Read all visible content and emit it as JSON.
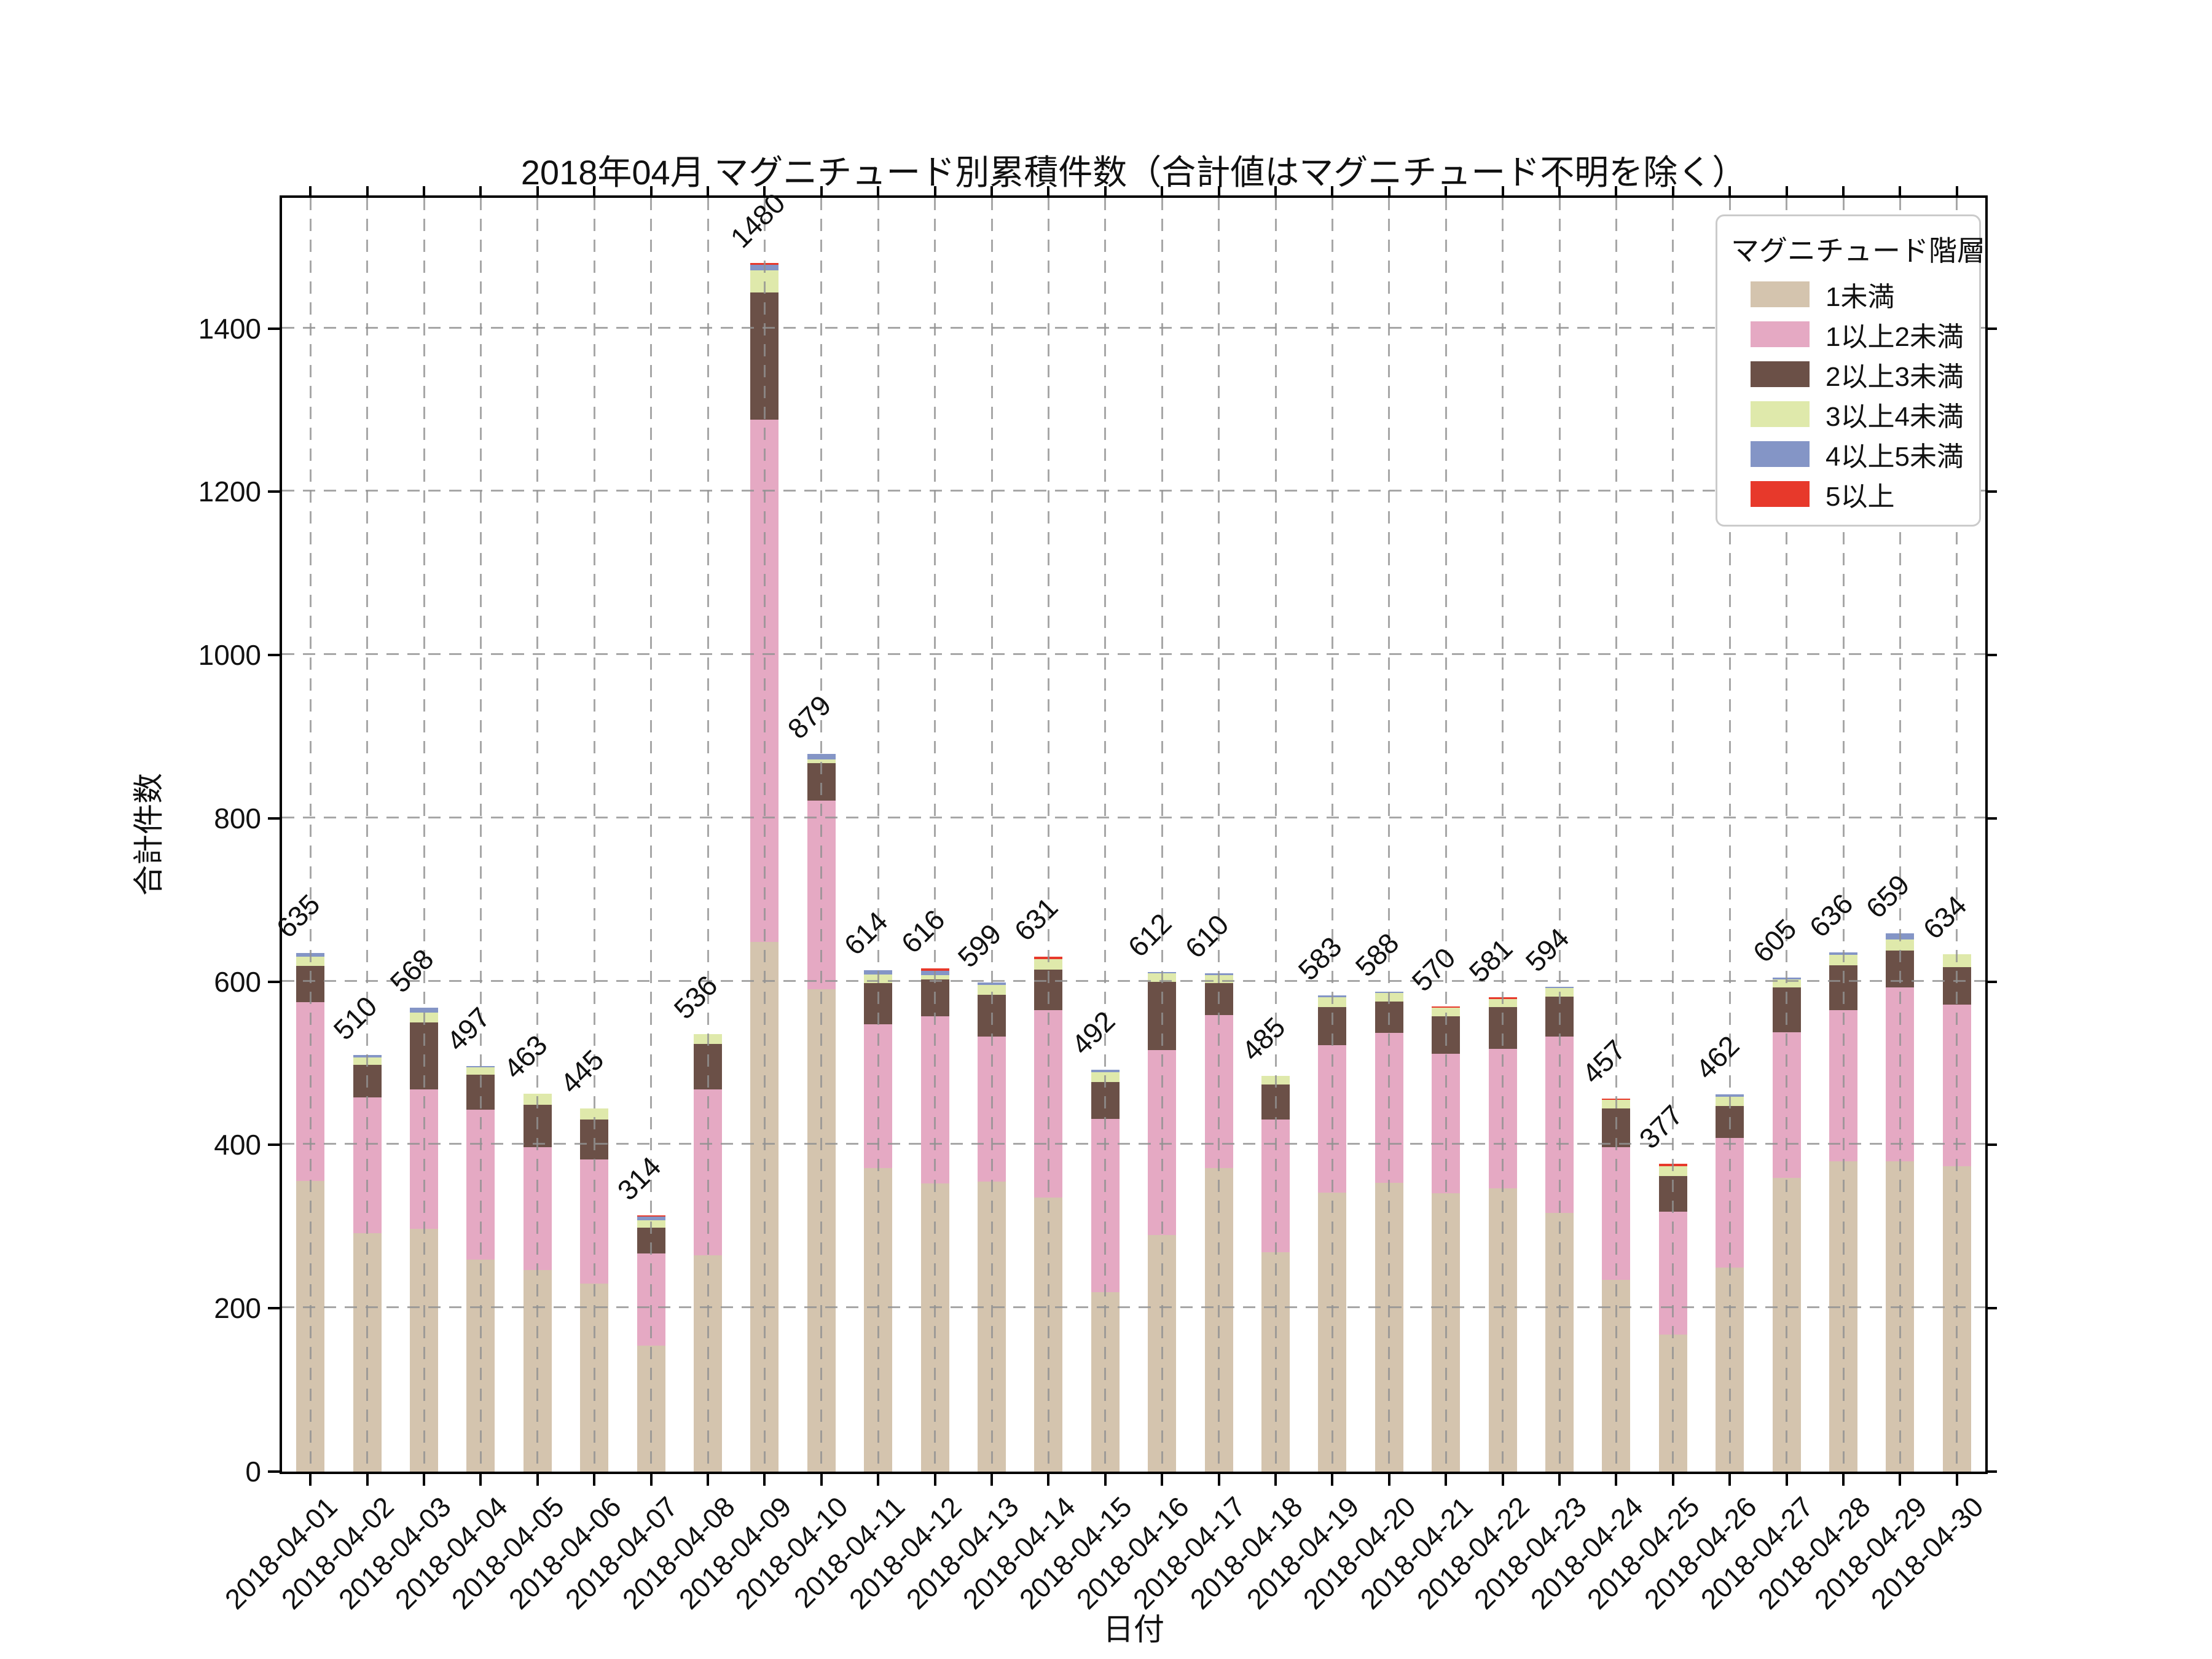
{
  "figure": {
    "title": "2018年04月 マグニチュード別累積件数（合計値はマグニチュード不明を除く）",
    "xlabel": "日付",
    "ylabel": "合計件数"
  },
  "legend": {
    "title": "マグニチュード階層"
  },
  "colors": {
    "m_lt1": "#d4c4ae",
    "m_1_2": "#e5a9c3",
    "m_2_3": "#6b5047",
    "m_3_4": "#dfe9ab",
    "m_4_5": "#8495c6",
    "m_5p": "#e7392b",
    "grid": "#919191",
    "spine": "#000000"
  },
  "chart_data": {
    "type": "bar",
    "stacked": true,
    "title": "2018年04月 マグニチュード別累積件数（合計値はマグニチュード不明を除く）",
    "xlabel": "日付",
    "ylabel": "合計件数",
    "ylim": [
      0,
      1560
    ],
    "yticks": [
      0,
      200,
      400,
      600,
      800,
      1000,
      1200,
      1400
    ],
    "grid": true,
    "legend_position": "upper right",
    "legend_title": "マグニチュード階層",
    "bar_width_fraction": 0.5,
    "categories": [
      "2018-04-01",
      "2018-04-02",
      "2018-04-03",
      "2018-04-04",
      "2018-04-05",
      "2018-04-06",
      "2018-04-07",
      "2018-04-08",
      "2018-04-09",
      "2018-04-10",
      "2018-04-11",
      "2018-04-12",
      "2018-04-13",
      "2018-04-14",
      "2018-04-15",
      "2018-04-16",
      "2018-04-17",
      "2018-04-18",
      "2018-04-19",
      "2018-04-20",
      "2018-04-21",
      "2018-04-22",
      "2018-04-23",
      "2018-04-24",
      "2018-04-25",
      "2018-04-26",
      "2018-04-27",
      "2018-04-28",
      "2018-04-29",
      "2018-04-30"
    ],
    "series": [
      {
        "name": "1未満",
        "color": "#d4c4ae",
        "values": [
          356,
          292,
          297,
          260,
          247,
          230,
          154,
          265,
          649,
          591,
          372,
          353,
          355,
          336,
          220,
          290,
          372,
          269,
          342,
          354,
          341,
          347,
          317,
          235,
          168,
          250,
          360,
          380,
          380,
          374
        ]
      },
      {
        "name": "1以上2未満",
        "color": "#e5a9c3",
        "values": [
          219,
          166,
          171,
          183,
          150,
          152,
          113,
          203,
          639,
          231,
          176,
          205,
          178,
          229,
          212,
          226,
          187,
          162,
          180,
          183,
          171,
          171,
          216,
          162,
          150,
          159,
          178,
          185,
          213,
          198
        ]
      },
      {
        "name": "2以上3未満",
        "color": "#6b5047",
        "values": [
          44,
          40,
          82,
          43,
          52,
          49,
          32,
          56,
          156,
          46,
          50,
          45,
          51,
          50,
          45,
          84,
          39,
          43,
          47,
          39,
          46,
          51,
          49,
          48,
          44,
          39,
          55,
          55,
          45,
          46
        ]
      },
      {
        "name": "3以上4未満",
        "color": "#dfe9ab",
        "values": [
          12,
          9,
          12,
          9,
          14,
          14,
          9,
          12,
          27,
          4,
          11,
          5,
          12,
          13,
          12,
          10,
          10,
          11,
          12,
          10,
          10,
          10,
          10,
          10,
          12,
          11,
          10,
          13,
          14,
          16
        ]
      },
      {
        "name": "4以上5未満",
        "color": "#8495c6",
        "values": [
          4,
          3,
          6,
          2,
          0,
          0,
          4,
          0,
          7,
          7,
          5,
          5,
          3,
          0,
          3,
          2,
          2,
          0,
          2,
          2,
          0,
          0,
          2,
          0,
          0,
          3,
          2,
          3,
          7,
          0
        ]
      },
      {
        "name": "5以上",
        "color": "#e7392b",
        "values": [
          0,
          0,
          0,
          0,
          0,
          0,
          2,
          0,
          2,
          0,
          0,
          3,
          0,
          3,
          0,
          0,
          0,
          0,
          0,
          0,
          2,
          2,
          0,
          2,
          3,
          0,
          0,
          0,
          0,
          0
        ]
      }
    ],
    "totals": [
      635,
      510,
      568,
      497,
      463,
      445,
      314,
      536,
      1480,
      879,
      614,
      616,
      599,
      631,
      492,
      612,
      610,
      485,
      583,
      588,
      570,
      581,
      594,
      457,
      377,
      462,
      605,
      636,
      659,
      634
    ]
  }
}
